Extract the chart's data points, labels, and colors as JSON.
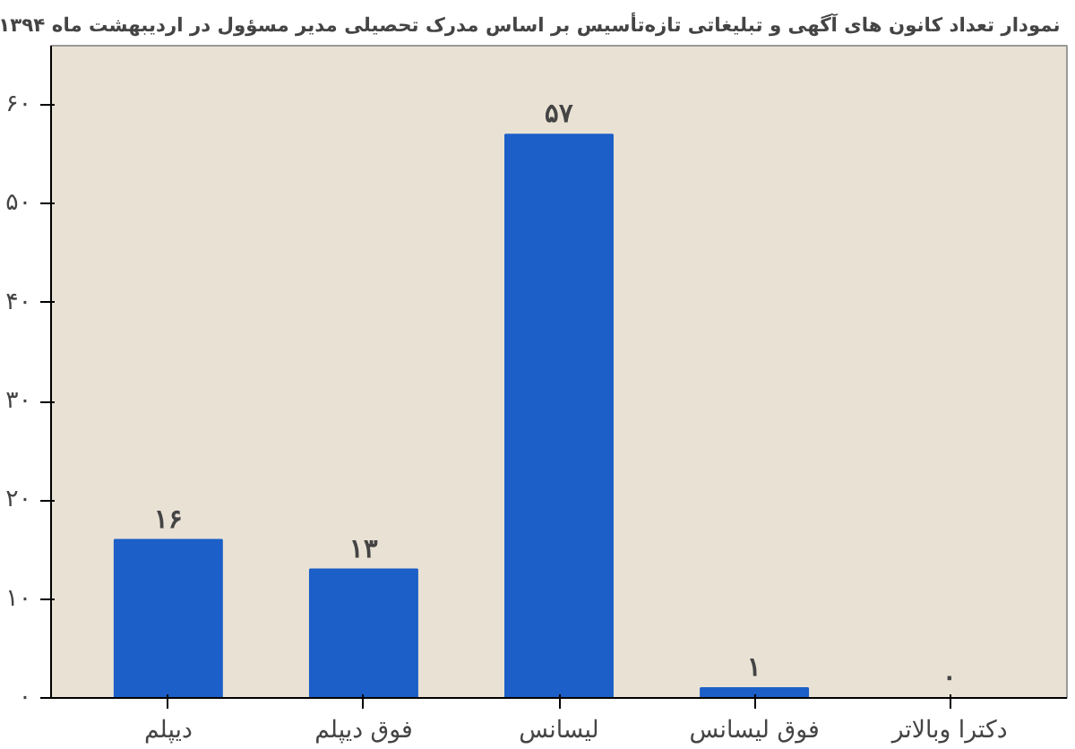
{
  "chart_data": {
    "type": "bar",
    "title": "نمودار تعداد کانون های آگهی و تبلیغاتی تازه‌تأسیس بر اساس مدرک تحصیلی مدیر مسؤول در اردیبهشت  ماه ۱۳۹۴",
    "categories": [
      "دیپلم",
      "فوق دیپلم",
      "لیسانس",
      "فوق لیسانس",
      "دکترا وبالاتر"
    ],
    "values": [
      16,
      13,
      57,
      1,
      0
    ],
    "value_labels": [
      "۱۶",
      "۱۳",
      "۵۷",
      "۱",
      "۰"
    ],
    "color": "#1c5fc8",
    "ylim": [
      0,
      66
    ],
    "yticks": [
      {
        "value": 0,
        "label": "۰"
      },
      {
        "value": 10,
        "label": "۱۰"
      },
      {
        "value": 20,
        "label": "۲۰"
      },
      {
        "value": 30,
        "label": "۳۰"
      },
      {
        "value": 40,
        "label": "۴۰"
      },
      {
        "value": 50,
        "label": "۵۰"
      },
      {
        "value": 60,
        "label": "۶۰"
      }
    ],
    "grid": false
  }
}
